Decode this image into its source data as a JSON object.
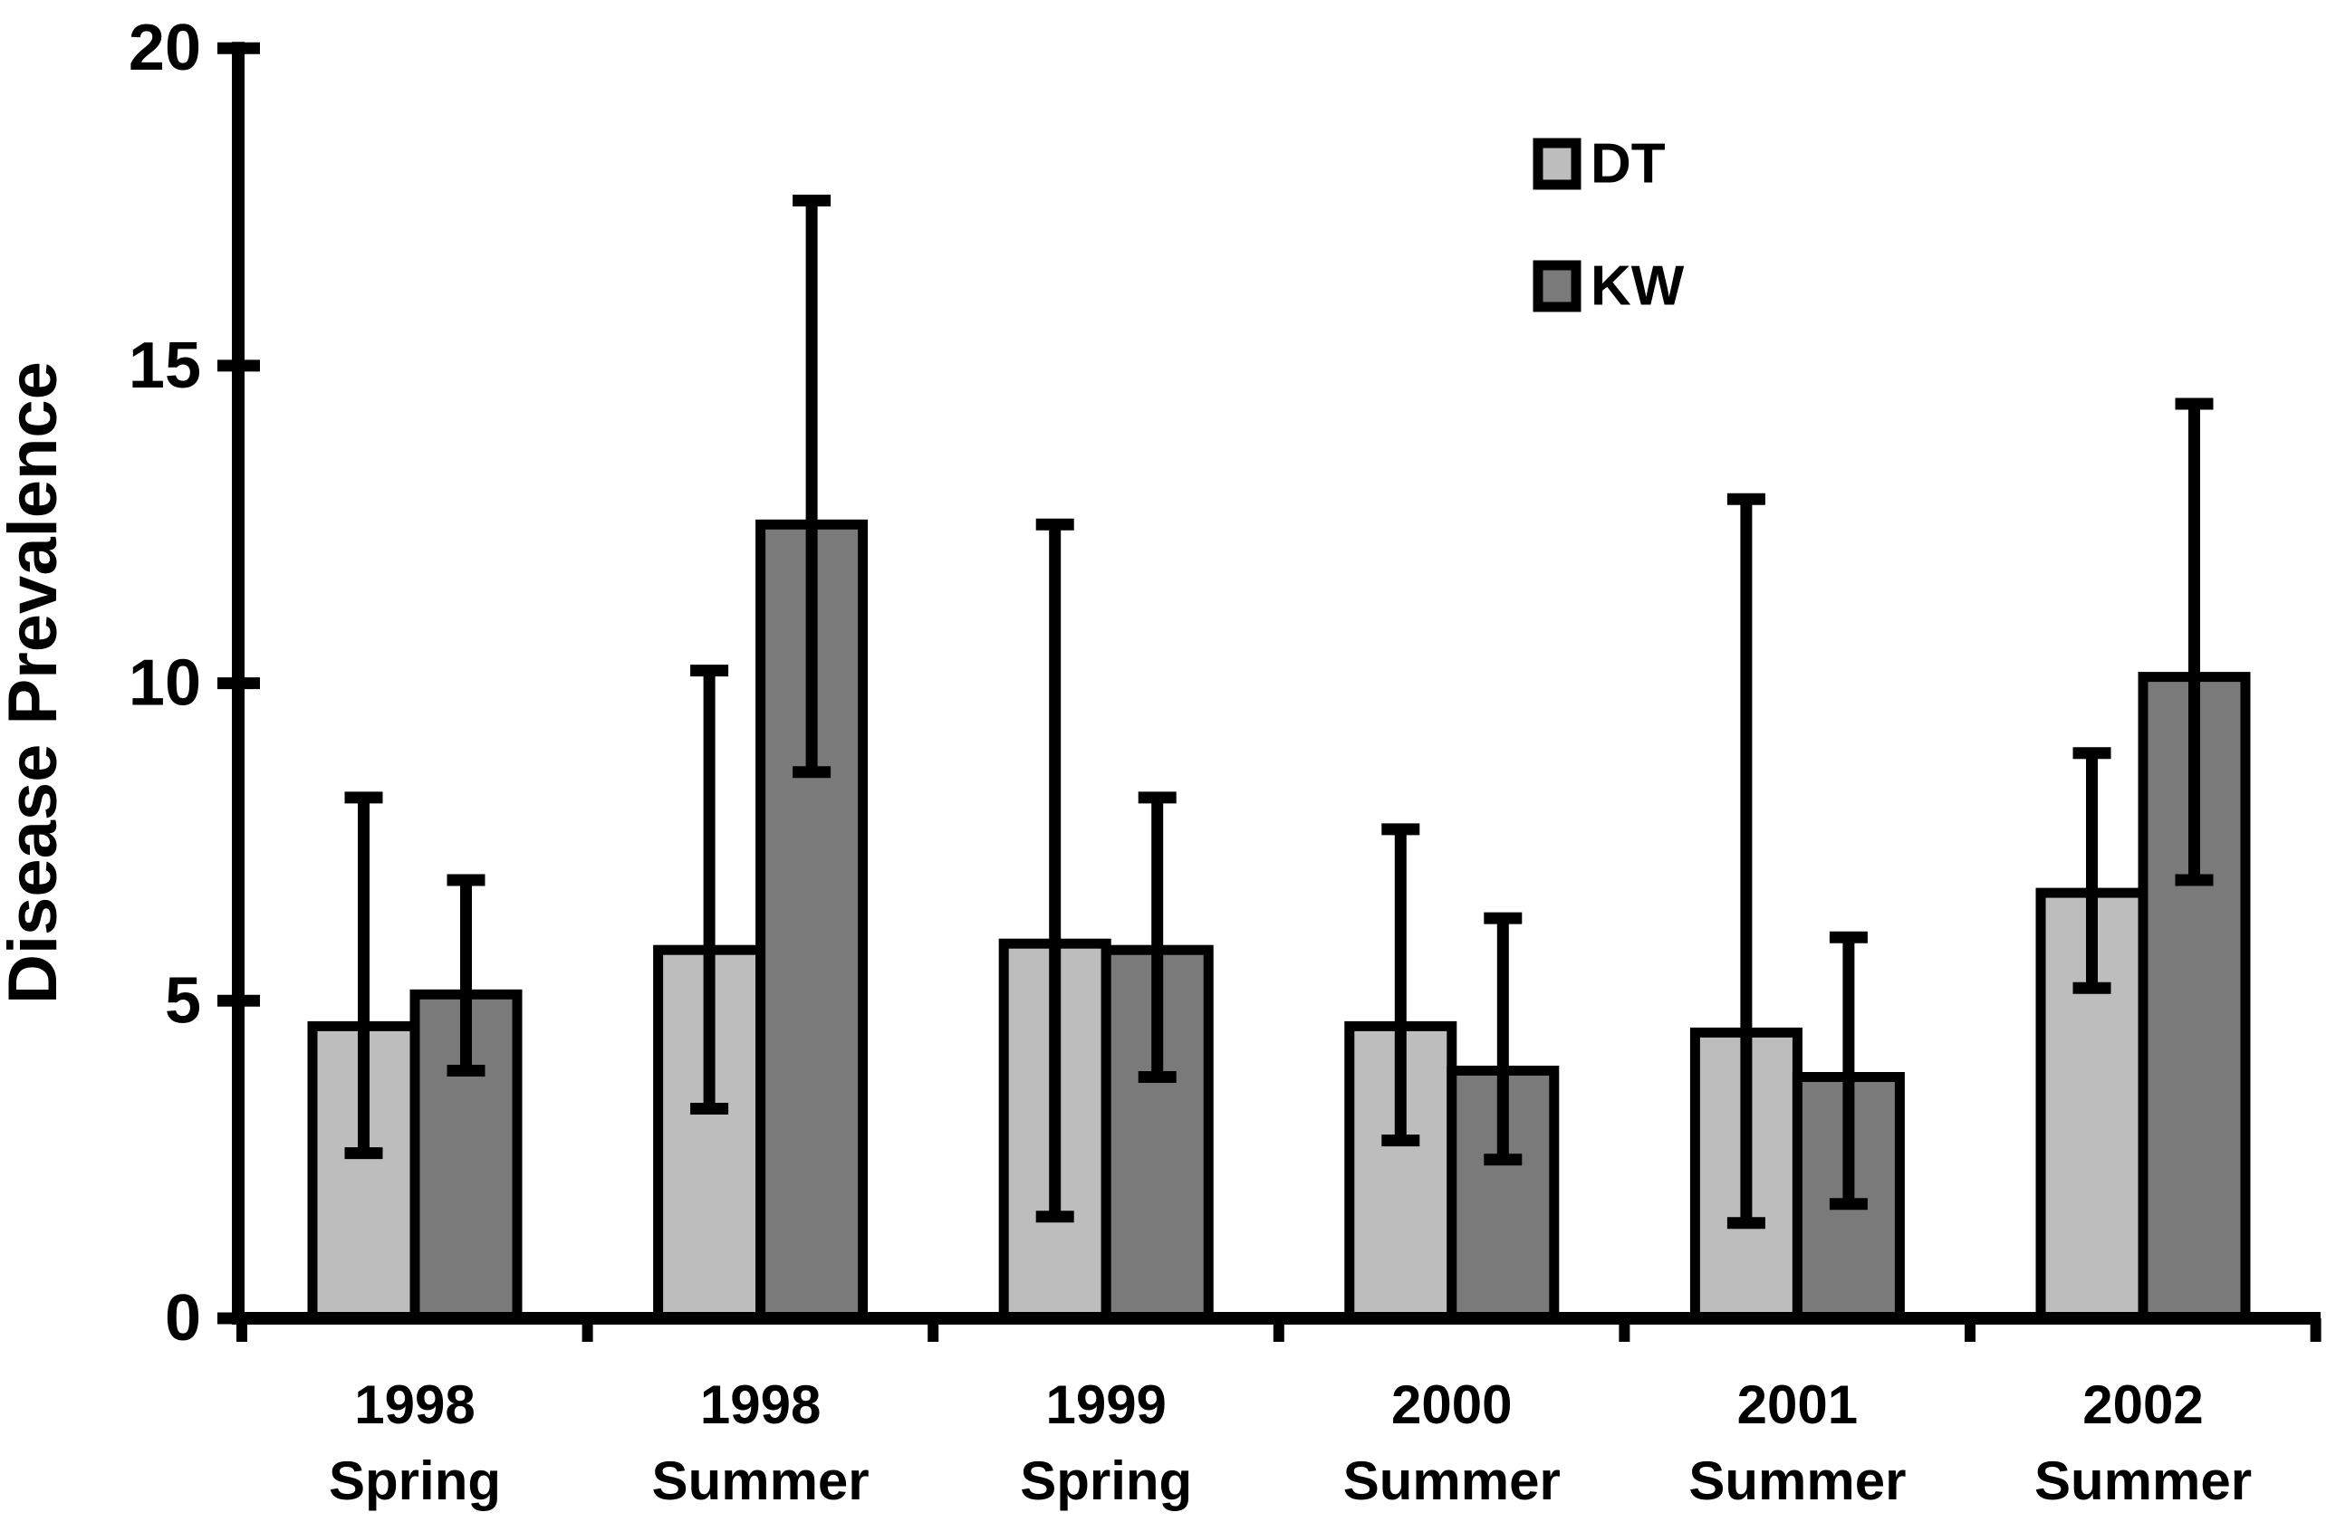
{
  "chart_data": {
    "type": "bar",
    "title": "",
    "ylabel": "Disease Prevalence",
    "xlabel": "",
    "ylim": [
      0,
      20
    ],
    "yticks": [
      0,
      5,
      10,
      15,
      20
    ],
    "grid": false,
    "legend_position": "top-right-inside",
    "error_bars": true,
    "categories": [
      {
        "year": "1998",
        "season": "Spring"
      },
      {
        "year": "1998",
        "season": "Summer"
      },
      {
        "year": "1999",
        "season": "Spring"
      },
      {
        "year": "2000",
        "season": "Summer"
      },
      {
        "year": "2001",
        "season": "Summer"
      },
      {
        "year": "2002",
        "season": "Summer"
      }
    ],
    "series": [
      {
        "name": "DT",
        "color": "#bdbdbd",
        "values": [
          4.6,
          5.8,
          5.9,
          4.6,
          4.5,
          6.7
        ],
        "whisker_high": [
          8.2,
          10.2,
          12.5,
          7.7,
          12.9,
          8.9
        ],
        "whisker_low": [
          2.6,
          3.3,
          1.6,
          2.8,
          1.5,
          5.2
        ]
      },
      {
        "name": "KW",
        "color": "#7a7a7a",
        "values": [
          5.1,
          12.5,
          5.8,
          3.9,
          3.8,
          10.1
        ],
        "whisker_high": [
          6.9,
          17.6,
          8.2,
          6.3,
          6.0,
          14.4
        ],
        "whisker_low": [
          3.9,
          8.6,
          3.8,
          2.5,
          1.8,
          6.9
        ]
      }
    ],
    "bar_border_color": "#000000",
    "axis_color": "#000000",
    "background_color": "#ffffff"
  }
}
